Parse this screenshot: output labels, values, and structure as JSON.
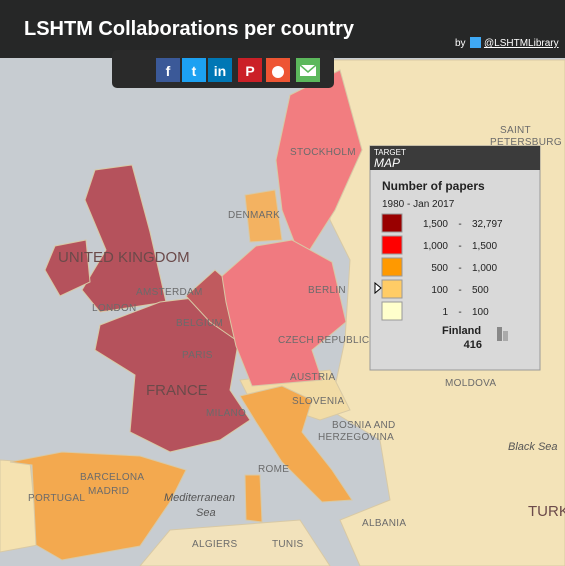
{
  "header": {
    "title": "LSHTM Collaborations per country",
    "by": "by",
    "account": "@LSHTMLibrary"
  },
  "share_buttons": [
    "f",
    "t",
    "in",
    "P"
  ],
  "legend": {
    "brand_top": "TARGET",
    "brand_bottom": "MAP",
    "title": "Number of papers",
    "period": "1980 - Jan 2017",
    "separator": "-",
    "classes": [
      {
        "color": "#990000",
        "from": "1,500",
        "to": "32,797"
      },
      {
        "color": "#ff0000",
        "from": "1,000",
        "to": "1,500"
      },
      {
        "color": "#ff9900",
        "from": "500",
        "to": "1,000"
      },
      {
        "color": "#ffcc66",
        "from": "100",
        "to": "500"
      },
      {
        "color": "#ffffcc",
        "from": "1",
        "to": "100"
      }
    ]
  },
  "hover": {
    "country": "Finland",
    "value": 416
  },
  "map_labels": {
    "saint": "SAINT",
    "petersburg": "PETERSBURG",
    "stockholm": "STOCKHOLM",
    "denmark": "DENMARK",
    "uk": "UNITED KINGDOM",
    "amsterdam": "AMSTERDAM",
    "london": "LONDON",
    "berlin": "BERLIN",
    "belgium": "BELGIUM",
    "paris": "PARIS",
    "czech": "CZECH REPUBLIC",
    "austria": "AUSTRIA",
    "france": "FRANCE",
    "milano": "MILANO",
    "slovenia": "SLOVENIA",
    "bosnia": "BOSNIA AND",
    "herzegovina": "HERZEGOVINA",
    "moldova": "MOLDOVA",
    "black_sea": "Black Sea",
    "rome": "ROME",
    "barcelona": "BARCELONA",
    "madrid": "MADRID",
    "portugal": "PORTUGAL",
    "med": "Mediterranean",
    "sea": "Sea",
    "algiers": "ALGIERS",
    "tunis": "TUNIS",
    "turkey": "TURKI",
    "albania": "ALBANIA"
  }
}
